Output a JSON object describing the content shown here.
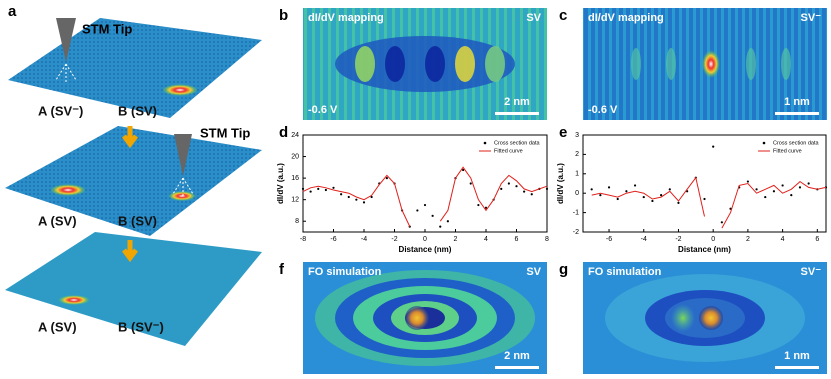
{
  "panel_a": {
    "label": "a",
    "steps": [
      {
        "tip": "STM Tip",
        "sites": [
          "A (SV⁻)",
          "B (SV)"
        ]
      },
      {
        "tip": "STM Tip",
        "sites": [
          "A (SV)",
          "B (SV)"
        ]
      },
      {
        "sites": [
          "A (SV)",
          "B (SV⁻)"
        ]
      }
    ]
  },
  "maps": [
    {
      "label": "b",
      "title": "dI/dV mapping",
      "state": "SV",
      "bias": "-0.6 V",
      "scale": "2 nm"
    },
    {
      "label": "c",
      "title": "dI/dV mapping",
      "state": "SV⁻",
      "bias": "-0.6 V",
      "scale": "1 nm"
    },
    {
      "label": "f",
      "title": "FO simulation",
      "state": "SV",
      "scale": "2 nm"
    },
    {
      "label": "g",
      "title": "FO simulation",
      "state": "SV⁻",
      "scale": "1 nm"
    }
  ],
  "chart_data": [
    {
      "type": "line",
      "label": "d",
      "xlabel": "Distance (nm)",
      "ylabel": "dI/dV (a.u.)",
      "legend": "upper right",
      "x": [
        -8,
        -7.5,
        -7,
        -6.5,
        -6,
        -5.5,
        -5,
        -4.5,
        -4,
        -3.5,
        -3,
        -2.5,
        -2,
        -1.5,
        -1,
        -0.5,
        0,
        0.5,
        1,
        1.5,
        2,
        2.5,
        3,
        3.5,
        4,
        4.5,
        5,
        5.5,
        6,
        6.5,
        7,
        7.5,
        8
      ],
      "xlim": [
        -8,
        8
      ],
      "xticks": [
        -8,
        -6,
        -4,
        -2,
        0,
        2,
        4,
        6,
        8
      ],
      "ylim": [
        6,
        24
      ],
      "yticks": [
        8,
        12,
        16,
        20,
        24
      ],
      "series": [
        {
          "name": "Cross section data",
          "color": "#000000",
          "mode": "markers",
          "values": [
            14,
            13.5,
            14,
            13.8,
            14.2,
            13,
            12.5,
            12,
            11.5,
            12.5,
            15,
            16,
            15,
            10,
            7,
            10,
            11,
            9,
            7,
            8,
            16,
            17.5,
            15,
            11,
            10.5,
            12,
            14,
            15,
            14.5,
            13.5,
            13,
            14,
            14
          ]
        },
        {
          "name": "Fitted curve",
          "color": "#e0201b",
          "mode": "line",
          "values": [
            13.5,
            14.2,
            14.5,
            14.2,
            13.8,
            13.5,
            13.2,
            12.5,
            12,
            12.8,
            14.8,
            16.5,
            15,
            10,
            7,
            null,
            null,
            null,
            8,
            10,
            16,
            18,
            16,
            12,
            10,
            12,
            15,
            16.5,
            15.5,
            14,
            13.5,
            14,
            14.5
          ]
        }
      ]
    },
    {
      "type": "line",
      "label": "e",
      "xlabel": "Distance (nm)",
      "ylabel": "dI/dV (a.u.)",
      "legend": "upper right",
      "x": [
        -7,
        -6.5,
        -6,
        -5.5,
        -5,
        -4.5,
        -4,
        -3.5,
        -3,
        -2.5,
        -2,
        -1.5,
        -1,
        -0.5,
        0,
        0.5,
        1,
        1.5,
        2,
        2.5,
        3,
        3.5,
        4,
        4.5,
        5,
        5.5,
        6,
        6.5
      ],
      "xlim": [
        -7.5,
        6.5
      ],
      "xticks": [
        -6,
        -4,
        -2,
        0,
        2,
        4,
        6
      ],
      "ylim": [
        -2,
        3
      ],
      "yticks": [
        -2,
        -1,
        0,
        1,
        2,
        3
      ],
      "series": [
        {
          "name": "Cross section data",
          "color": "#000000",
          "mode": "markers",
          "values": [
            0.2,
            -0.1,
            0.3,
            -0.3,
            0.1,
            0.4,
            -0.2,
            -0.4,
            -0.1,
            0.2,
            -0.5,
            0.1,
            0.8,
            -0.3,
            2.4,
            -1.5,
            -0.8,
            0.3,
            0.6,
            0.2,
            -0.2,
            0.1,
            0.4,
            -0.1,
            0.3,
            0.5,
            0.2,
            0.3
          ]
        },
        {
          "name": "Fitted curve",
          "color": "#e0201b",
          "mode": "line",
          "values": [
            -0.1,
            0,
            -0.1,
            -0.2,
            0,
            0.1,
            0,
            -0.3,
            -0.2,
            0.1,
            -0.4,
            0.2,
            0.8,
            -1.2,
            null,
            -1.8,
            -1,
            0.4,
            0.5,
            0,
            0.2,
            0.4,
            0,
            0.2,
            0.6,
            0.3,
            0.2,
            0.3
          ]
        }
      ]
    }
  ]
}
